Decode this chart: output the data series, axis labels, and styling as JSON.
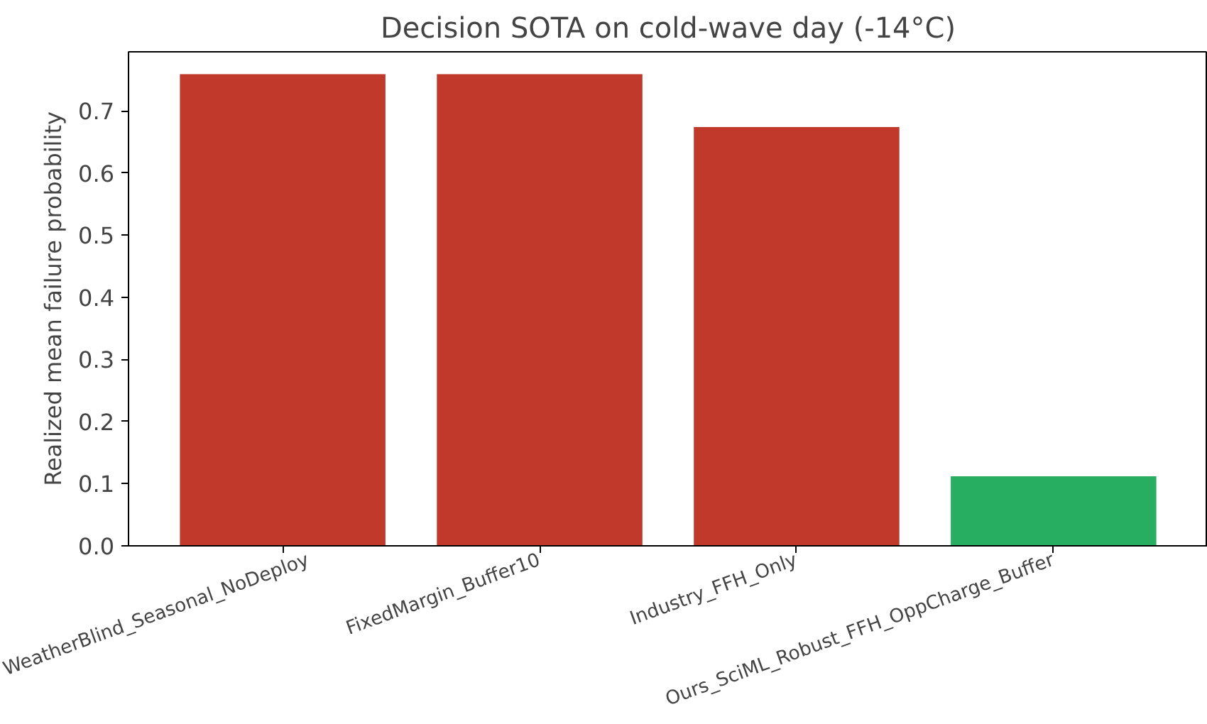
{
  "chart_data": {
    "type": "bar",
    "title": "Decision SOTA on cold-wave day (-14°C)",
    "ylabel": "Realized mean failure probability",
    "categories": [
      "WeatherBlind_Seasonal_NoDeploy",
      "FixedMargin_Buffer10",
      "Industry_FFH_Only",
      "Ours_SciML_Robust_FFH_OppCharge_Buffer"
    ],
    "values": [
      0.759,
      0.759,
      0.674,
      0.112
    ],
    "colors": [
      "#c0392b",
      "#c0392b",
      "#c0392b",
      "#27ae60"
    ],
    "ylim": [
      0,
      0.795
    ],
    "yticks": [
      {
        "value": 0,
        "label": "0.0"
      },
      0.1,
      0.2,
      0.3,
      0.4,
      0.5,
      0.6,
      0.7
    ],
    "grid": false
  }
}
